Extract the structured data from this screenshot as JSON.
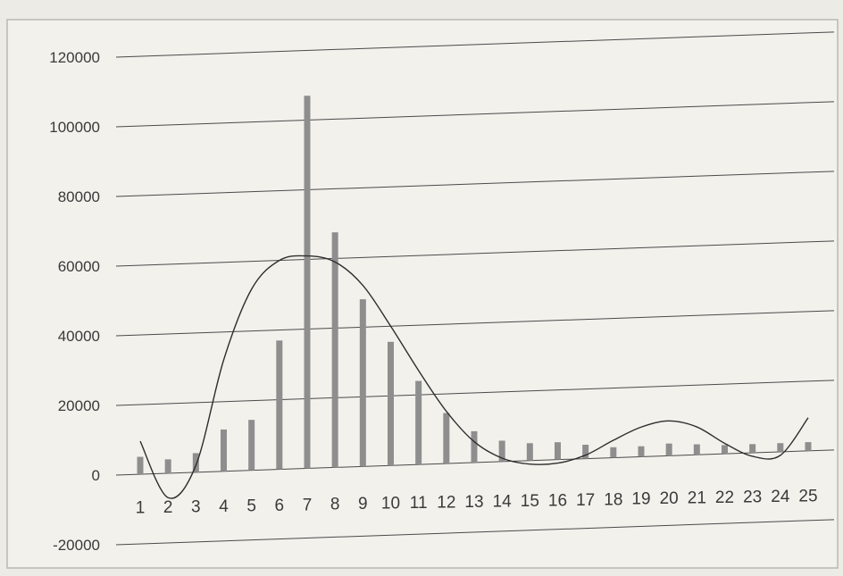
{
  "chart_data": {
    "type": "bar",
    "title": "",
    "xlabel": "",
    "ylabel": "",
    "grid": true,
    "ylim": [
      -20000,
      120000
    ],
    "yticks": [
      -20000,
      0,
      20000,
      40000,
      60000,
      80000,
      100000,
      120000
    ],
    "categories": [
      "1",
      "2",
      "3",
      "4",
      "5",
      "6",
      "7",
      "8",
      "9",
      "10",
      "11",
      "12",
      "13",
      "14",
      "15",
      "16",
      "17",
      "18",
      "19",
      "20",
      "21",
      "22",
      "23",
      "24",
      "25"
    ],
    "series": [
      {
        "kind": "bar",
        "values": [
          5000,
          4000,
          5500,
          12000,
          14500,
          37000,
          107000,
          67500,
          48000,
          35500,
          24000,
          14500,
          9000,
          6000,
          5000,
          5000,
          4000,
          3000,
          3000,
          3500,
          3000,
          2500,
          2500,
          2500,
          2500
        ]
      },
      {
        "kind": "line",
        "values": [
          9500,
          -7000,
          2000,
          32000,
          52000,
          60000,
          61000,
          59000,
          52000,
          40000,
          27000,
          15000,
          6000,
          1000,
          -1000,
          -1000,
          1000,
          5000,
          8500,
          10000,
          8000,
          3000,
          -1000,
          -1000,
          9500
        ]
      }
    ],
    "colors": {
      "bar": "#8e8e8e",
      "line": "#2e2e2e",
      "grid": "#4a4a4a"
    }
  }
}
